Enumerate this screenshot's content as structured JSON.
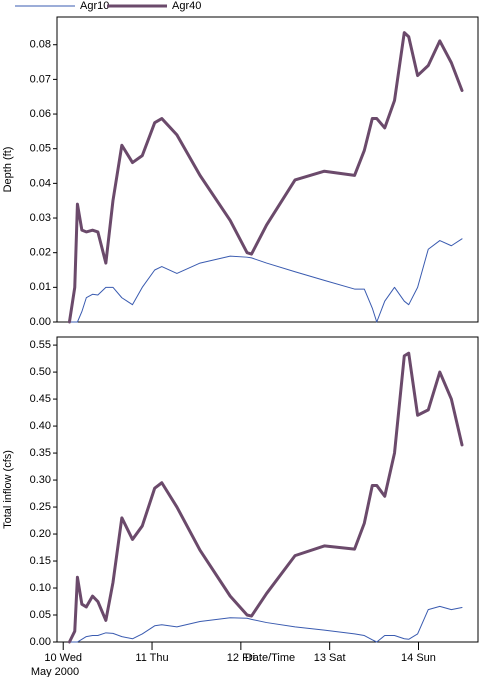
{
  "chart_data": [
    {
      "type": "line",
      "y_label": "Depth (ft)",
      "x": [
        10.07,
        10.13,
        10.16,
        10.21,
        10.26,
        10.33,
        10.39,
        10.48,
        10.56,
        10.66,
        10.78,
        10.89,
        11.03,
        11.11,
        11.28,
        11.54,
        11.88,
        12.07,
        12.12,
        12.29,
        12.61,
        12.94,
        13.28,
        13.39,
        13.48,
        13.53,
        13.62,
        13.73,
        13.84,
        13.89,
        13.99,
        14.11,
        14.24,
        14.37,
        14.49
      ],
      "xlim": [
        9.93,
        14.67
      ],
      "ylim": [
        0,
        0.088
      ],
      "yticks": [
        {
          "value": 0,
          "label": "0.00"
        },
        0.01,
        0.02,
        0.03,
        0.04,
        0.05,
        0.06,
        0.07,
        0.08
      ],
      "series": [
        {
          "name": "Agr10",
          "color": "#3a5bb0",
          "width": 1,
          "values": [
            0,
            0,
            0,
            0.003,
            0.007,
            0.008,
            0.0078,
            0.01,
            0.01,
            0.007,
            0.005,
            0.01,
            0.015,
            0.016,
            0.014,
            0.017,
            0.019,
            0.0187,
            0.0185,
            0.017,
            0.0145,
            0.012,
            0.0095,
            0.0095,
            0.004,
            0,
            0.006,
            0.01,
            0.006,
            0.005,
            0.01,
            0.021,
            0.0235,
            0.022,
            0.024
          ]
        },
        {
          "name": "Agr40",
          "color": "#6b4a6b",
          "width": 3,
          "values": [
            0,
            0.01,
            0.034,
            0.0265,
            0.026,
            0.0265,
            0.026,
            0.017,
            0.035,
            0.051,
            0.046,
            0.048,
            0.0575,
            0.0587,
            0.054,
            0.0423,
            0.0293,
            0.02,
            0.0196,
            0.028,
            0.041,
            0.0435,
            0.0423,
            0.0495,
            0.0587,
            0.0587,
            0.056,
            0.0639,
            0.0835,
            0.0823,
            0.0711,
            0.074,
            0.0811,
            0.0748,
            0.0668
          ]
        }
      ]
    },
    {
      "type": "line",
      "y_label": "Total inflow (cfs)",
      "x_label": "Date/Time",
      "x_group_label": "May 2000",
      "x": [
        10.07,
        10.13,
        10.16,
        10.21,
        10.26,
        10.33,
        10.39,
        10.48,
        10.56,
        10.66,
        10.78,
        10.89,
        11.03,
        11.11,
        11.28,
        11.54,
        11.88,
        12.07,
        12.12,
        12.29,
        12.61,
        12.94,
        13.28,
        13.39,
        13.48,
        13.53,
        13.62,
        13.73,
        13.84,
        13.89,
        13.99,
        14.11,
        14.24,
        14.37,
        14.49
      ],
      "xlim": [
        9.93,
        14.67
      ],
      "ylim": [
        0,
        0.565
      ],
      "xticks": [
        {
          "value": 10,
          "label": "10 Wed"
        },
        {
          "value": 11,
          "label": "11 Thu"
        },
        {
          "value": 12,
          "label": "12 Fri"
        },
        {
          "value": 13,
          "label": "13 Sat"
        },
        {
          "value": 14,
          "label": "14 Sun"
        }
      ],
      "yticks": [
        {
          "value": 0,
          "label": "0.00"
        },
        0.05,
        {
          "value": 0.1,
          "label": "0.10"
        },
        0.15,
        {
          "value": 0.2,
          "label": "0.20"
        },
        0.25,
        {
          "value": 0.3,
          "label": "0.30"
        },
        0.35,
        {
          "value": 0.4,
          "label": "0.40"
        },
        0.45,
        {
          "value": 0.5,
          "label": "0.50"
        },
        0.55
      ],
      "series": [
        {
          "color": "#3a5bb0",
          "width": 1,
          "values": [
            0,
            0,
            0,
            0.005,
            0.01,
            0.012,
            0.012,
            0.017,
            0.016,
            0.01,
            0.006,
            0.015,
            0.03,
            0.032,
            0.028,
            0.038,
            0.045,
            0.044,
            0.042,
            0.036,
            0.028,
            0.022,
            0.015,
            0.012,
            0.004,
            0,
            0.012,
            0.012,
            0.006,
            0.005,
            0.015,
            0.06,
            0.066,
            0.06,
            0.064
          ]
        },
        {
          "color": "#6b4a6b",
          "width": 3,
          "values": [
            0,
            0.02,
            0.12,
            0.07,
            0.065,
            0.085,
            0.075,
            0.04,
            0.11,
            0.23,
            0.19,
            0.215,
            0.285,
            0.295,
            0.25,
            0.17,
            0.085,
            0.05,
            0.048,
            0.09,
            0.16,
            0.178,
            0.172,
            0.22,
            0.29,
            0.29,
            0.27,
            0.35,
            0.53,
            0.535,
            0.42,
            0.43,
            0.5,
            0.45,
            0.365
          ]
        }
      ]
    }
  ]
}
